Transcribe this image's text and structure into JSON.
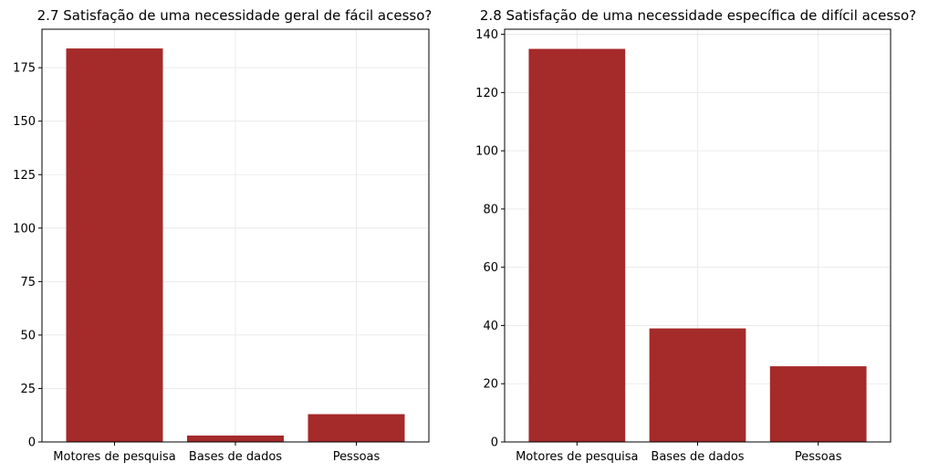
{
  "chart_data": [
    {
      "type": "bar",
      "title": "2.7 Satisfação de uma necessidade geral de fácil acesso?",
      "categories": [
        "Motores de pesquisa",
        "Bases de dados",
        "Pessoas"
      ],
      "values": [
        184,
        3,
        13
      ],
      "ylim": [
        0,
        193
      ],
      "yticks": [
        0,
        25,
        50,
        75,
        100,
        125,
        150,
        175
      ],
      "grid": true,
      "bar_color": "#a52a2a"
    },
    {
      "type": "bar",
      "title": "2.8 Satisfação de uma necessidade específica de difícil acesso?",
      "categories": [
        "Motores de pesquisa",
        "Bases de dados",
        "Pessoas"
      ],
      "values": [
        135,
        39,
        26
      ],
      "ylim": [
        0,
        141.75
      ],
      "yticks": [
        0,
        20,
        40,
        60,
        80,
        100,
        120,
        140
      ],
      "grid": true,
      "bar_color": "#a52a2a"
    }
  ]
}
